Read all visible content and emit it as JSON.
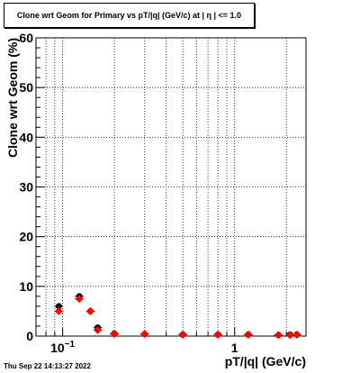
{
  "title": "Clone wrt Geom for Primary vs pT/|q| (GeV/c) at |  η | <= 1.0",
  "timestamp": "Thu Sep 22 14:13:27 2022",
  "chart_data": {
    "type": "scatter",
    "title": "Clone wrt Geom for Primary vs pT/|q| (GeV/c) at |  η | <= 1.0",
    "xlabel": "pT/|q| (GeV/c)",
    "ylabel": "Clone wrt Geom (%)",
    "xscale": "log",
    "xlim": [
      0.07,
      2.6
    ],
    "ylim": [
      0,
      60
    ],
    "x_tick_labels": [
      {
        "value": 0.1,
        "base": "10",
        "exp": "−1"
      },
      {
        "value": 1,
        "text": "1"
      }
    ],
    "y_ticks": [
      0,
      10,
      20,
      30,
      40,
      50,
      60
    ],
    "grid": true,
    "series": [
      {
        "marker": "circle",
        "color": "#000000",
        "x": [
          0.095,
          0.125,
          0.145,
          0.16,
          0.2,
          0.3,
          0.5,
          0.8,
          1.2,
          1.8,
          2.1,
          2.3
        ],
        "y": [
          6.0,
          8.0,
          5.0,
          1.7,
          0.5,
          0.4,
          0.3,
          0.3,
          0.3,
          0.2,
          0.3,
          0.3
        ]
      },
      {
        "marker": "diamond",
        "color": "#ff0000",
        "x": [
          0.095,
          0.125,
          0.145,
          0.16,
          0.2,
          0.3,
          0.5,
          0.8,
          1.2,
          1.8,
          2.1,
          2.3
        ],
        "y": [
          5.0,
          7.5,
          5.0,
          1.2,
          0.4,
          0.4,
          0.3,
          0.3,
          0.3,
          0.2,
          0.2,
          0.3
        ]
      }
    ]
  }
}
